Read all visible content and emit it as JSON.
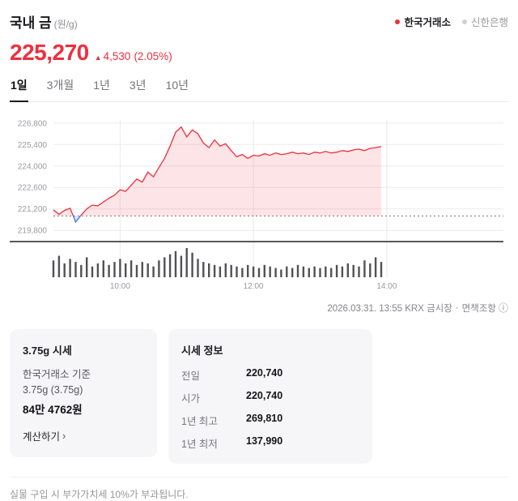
{
  "colors": {
    "accent": "#ee2f3d"
  },
  "header": {
    "title": "국내 금",
    "unit": "(원/g)",
    "sources": [
      {
        "label": "한국거래소",
        "selected": true
      },
      {
        "label": "신한은행",
        "selected": false
      }
    ]
  },
  "price": {
    "current": "225,270",
    "change_icon": "▲",
    "change": "4,530",
    "change_pct": "(2.05%)"
  },
  "tabs": [
    {
      "label": "1일",
      "active": true
    },
    {
      "label": "3개월",
      "active": false
    },
    {
      "label": "1년",
      "active": false
    },
    {
      "label": "3년",
      "active": false
    },
    {
      "label": "10년",
      "active": false
    }
  ],
  "chart_data": {
    "type": "area",
    "title": "국내 금 1일 가격 및 거래량",
    "unit": "원/g",
    "x_range_minutes": [
      540,
      945
    ],
    "x_ticks": [
      {
        "minute": 600,
        "label": "10:00"
      },
      {
        "minute": 720,
        "label": "12:00"
      },
      {
        "minute": 840,
        "label": "14:00"
      }
    ],
    "y_ticks": [
      219800,
      221200,
      222600,
      224000,
      225400,
      226800
    ],
    "ylim": [
      219600,
      227000
    ],
    "prev_close": 220740,
    "last_price": 225270,
    "last_time": "13:55",
    "grid": true,
    "legend": "none",
    "colors": {
      "line": "#ee2f3d",
      "fill": "rgba(238,47,61,0.13)",
      "below_line": "#4a6fe8",
      "below_fill": "rgba(74,111,232,0.18)",
      "grid": "#ebebee",
      "dashed": "#77777d",
      "axis": "#222227",
      "volume": "#515157",
      "tick_text": "#9b9ba1"
    },
    "points": [
      [
        540,
        221150
      ],
      [
        545,
        220850
      ],
      [
        550,
        221100
      ],
      [
        555,
        221250
      ],
      [
        560,
        220350
      ],
      [
        565,
        220800
      ],
      [
        570,
        221200
      ],
      [
        575,
        221450
      ],
      [
        580,
        221400
      ],
      [
        585,
        221650
      ],
      [
        590,
        221900
      ],
      [
        595,
        222100
      ],
      [
        600,
        222450
      ],
      [
        605,
        222350
      ],
      [
        610,
        222750
      ],
      [
        615,
        223150
      ],
      [
        620,
        222950
      ],
      [
        625,
        223600
      ],
      [
        630,
        223300
      ],
      [
        635,
        223900
      ],
      [
        640,
        224500
      ],
      [
        645,
        225300
      ],
      [
        650,
        226200
      ],
      [
        655,
        226550
      ],
      [
        660,
        225900
      ],
      [
        665,
        226350
      ],
      [
        670,
        226100
      ],
      [
        675,
        225500
      ],
      [
        680,
        225200
      ],
      [
        685,
        225700
      ],
      [
        690,
        225300
      ],
      [
        695,
        225450
      ],
      [
        700,
        225000
      ],
      [
        705,
        224600
      ],
      [
        710,
        224750
      ],
      [
        715,
        224500
      ],
      [
        720,
        224700
      ],
      [
        725,
        224650
      ],
      [
        730,
        224800
      ],
      [
        735,
        224700
      ],
      [
        740,
        224850
      ],
      [
        745,
        224750
      ],
      [
        750,
        224800
      ],
      [
        755,
        224900
      ],
      [
        760,
        224800
      ],
      [
        765,
        224850
      ],
      [
        770,
        224750
      ],
      [
        775,
        224900
      ],
      [
        780,
        224850
      ],
      [
        785,
        224950
      ],
      [
        790,
        224850
      ],
      [
        795,
        224900
      ],
      [
        800,
        225000
      ],
      [
        805,
        224950
      ],
      [
        810,
        225050
      ],
      [
        815,
        225100
      ],
      [
        820,
        225000
      ],
      [
        825,
        225150
      ],
      [
        830,
        225200
      ],
      [
        835,
        225270
      ]
    ],
    "volume": [
      55,
      70,
      45,
      60,
      50,
      40,
      65,
      35,
      45,
      55,
      40,
      50,
      60,
      45,
      55,
      40,
      50,
      45,
      35,
      55,
      65,
      75,
      85,
      70,
      95,
      80,
      60,
      50,
      45,
      40,
      35,
      45,
      40,
      35,
      30,
      40,
      35,
      30,
      40,
      35,
      30,
      25,
      35,
      30,
      40,
      35,
      30,
      35,
      30,
      35,
      30,
      40,
      35,
      45,
      40,
      35,
      55,
      45,
      65,
      50
    ]
  },
  "market_info": {
    "timestamp": "2026.03.31. 13:55 KRX 금시장",
    "separator": "·",
    "disclaimer": "면책조항",
    "info_icon": "ⓘ"
  },
  "cards": {
    "unit_price": {
      "title": "3.75g 시세",
      "line1": "한국거래소 기준",
      "line2": "3.75g (3.75g)",
      "price": "84만 4762원",
      "link": "계산하기",
      "link_chevron": "›"
    },
    "quote_info": {
      "title": "시세 정보",
      "rows": [
        {
          "label": "전일",
          "value": "220,740"
        },
        {
          "label": "시가",
          "value": "220,740"
        },
        {
          "label": "1년 최고",
          "value": "269,810"
        },
        {
          "label": "1년 최저",
          "value": "137,990"
        }
      ]
    }
  },
  "footnote": "실물 구입 시 부가가치세 10%가 부과됩니다."
}
